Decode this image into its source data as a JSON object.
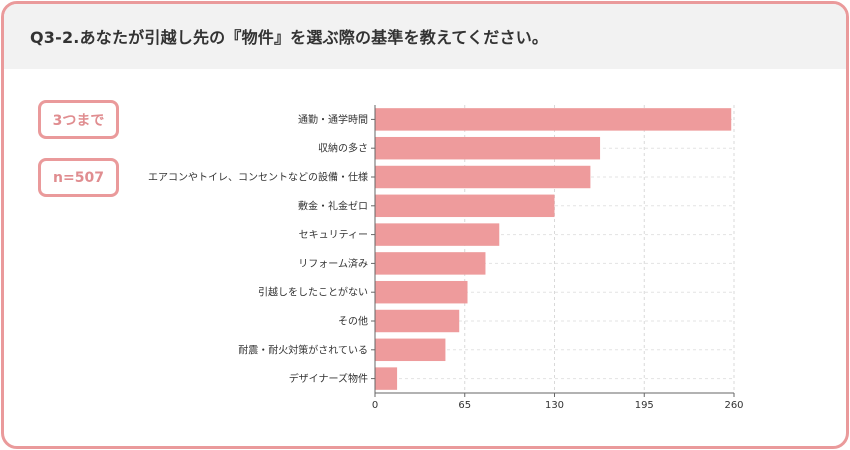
{
  "header": {
    "title": "Q3-2.あなたが引越し先の『物件』を選ぶ際の基準を教えてください。"
  },
  "badges": {
    "limit": "3つまで",
    "n": "n=507"
  },
  "colors": {
    "bar": "#ee9b9c",
    "border": "#ea9a9b",
    "header_bg": "#f2f2f2"
  },
  "chart_data": {
    "type": "bar",
    "orientation": "horizontal",
    "categories": [
      "通勤・通学時間",
      "収納の多さ",
      "エアコンやトイレ、コンセントなどの設備・仕様",
      "敷金・礼金ゼロ",
      "セキュリティー",
      "リフォーム済み",
      "引越しをしたことがない",
      "その他",
      "耐震・耐火対策がされている",
      "デザイナーズ物件"
    ],
    "values": [
      258,
      163,
      156,
      130,
      90,
      80,
      67,
      61,
      51,
      16
    ],
    "xlim": [
      0,
      260
    ],
    "xticks": [
      "0",
      "65",
      "130",
      "195",
      "260"
    ],
    "grid": true
  }
}
